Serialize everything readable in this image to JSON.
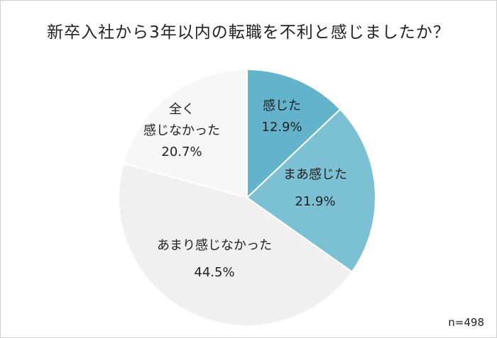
{
  "chart_data": {
    "type": "pie",
    "title": "新卒入社から3年以内の転職を不利と感じましたか？",
    "note": "n=498",
    "slices": [
      {
        "label_lines": [
          "感じた"
        ],
        "value": 12.9,
        "value_text": "12.9%",
        "color": "#63b3cc"
      },
      {
        "label_lines": [
          "まあ感じた"
        ],
        "value": 21.9,
        "value_text": "21.9%",
        "color": "#7cc0d4"
      },
      {
        "label_lines": [
          "あまり感じなかった"
        ],
        "value": 44.5,
        "value_text": "44.5%",
        "color": "#f0f0f0"
      },
      {
        "label_lines": [
          "全く",
          "感じなかった"
        ],
        "value": 20.7,
        "value_text": "20.7%",
        "color": "#f7f7f7"
      }
    ]
  }
}
